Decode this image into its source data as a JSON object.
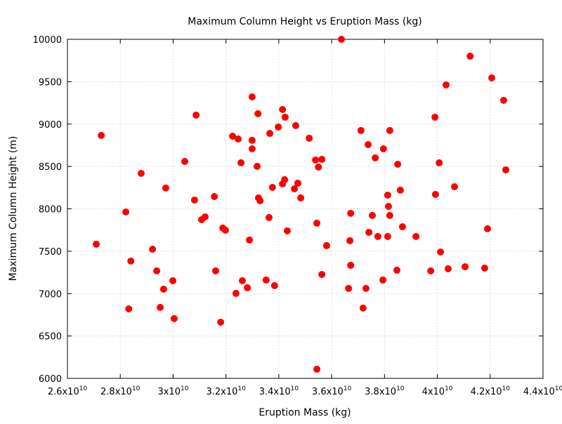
{
  "chart_data": {
    "type": "scatter",
    "title": "Maximum Column Height vs Eruption Mass (kg)",
    "xlabel": "Eruption Mass (kg)",
    "ylabel": "Maximum Column Height (m)",
    "xlim": [
      26000000000.0,
      44000000000.0
    ],
    "ylim": [
      6000,
      10000
    ],
    "grid": true,
    "marker_color": "#ff0000",
    "x_ticks": [
      {
        "value": 26000000000.0,
        "mantissa": "2.6x10",
        "exp": "10"
      },
      {
        "value": 28000000000.0,
        "mantissa": "2.8x10",
        "exp": "10"
      },
      {
        "value": 30000000000.0,
        "mantissa": "3x10",
        "exp": "10"
      },
      {
        "value": 32000000000.0,
        "mantissa": "3.2x10",
        "exp": "10"
      },
      {
        "value": 34000000000.0,
        "mantissa": "3.4x10",
        "exp": "10"
      },
      {
        "value": 36000000000.0,
        "mantissa": "3.6x10",
        "exp": "10"
      },
      {
        "value": 38000000000.0,
        "mantissa": "3.8x10",
        "exp": "10"
      },
      {
        "value": 40000000000.0,
        "mantissa": "4x10",
        "exp": "10"
      },
      {
        "value": 42000000000.0,
        "mantissa": "4.2x10",
        "exp": "10"
      },
      {
        "value": 44000000000.0,
        "mantissa": "4.4x10",
        "exp": "10"
      }
    ],
    "y_ticks": [
      "6000",
      "6500",
      "7000",
      "7500",
      "8000",
      "8500",
      "9000",
      "9500",
      "10000"
    ],
    "points": [
      [
        27090000000.0,
        7583
      ],
      [
        27280000000.0,
        8866
      ],
      [
        28210000000.0,
        7963
      ],
      [
        28320000000.0,
        6820
      ],
      [
        28400000000.0,
        7384
      ],
      [
        28790000000.0,
        8418
      ],
      [
        29220000000.0,
        7524
      ],
      [
        29380000000.0,
        7268
      ],
      [
        29510000000.0,
        6837
      ],
      [
        29640000000.0,
        7052
      ],
      [
        29720000000.0,
        8245
      ],
      [
        29990000000.0,
        7152
      ],
      [
        30040000000.0,
        6705
      ],
      [
        30440000000.0,
        8559
      ],
      [
        30810000000.0,
        8104
      ],
      [
        30870000000.0,
        9106
      ],
      [
        31080000000.0,
        7872
      ],
      [
        31210000000.0,
        7905
      ],
      [
        31560000000.0,
        8145
      ],
      [
        31610000000.0,
        7268
      ],
      [
        31800000000.0,
        6663
      ],
      [
        31880000000.0,
        7773
      ],
      [
        31980000000.0,
        7748
      ],
      [
        32250000000.0,
        8857
      ],
      [
        32380000000.0,
        7003
      ],
      [
        32460000000.0,
        8824
      ],
      [
        32570000000.0,
        8543
      ],
      [
        32620000000.0,
        7152
      ],
      [
        32810000000.0,
        7069
      ],
      [
        32890000000.0,
        7632
      ],
      [
        32990000000.0,
        9321
      ],
      [
        32990000000.0,
        8808
      ],
      [
        32990000000.0,
        8708
      ],
      [
        33180000000.0,
        8501
      ],
      [
        33210000000.0,
        9122
      ],
      [
        33230000000.0,
        8129
      ],
      [
        33290000000.0,
        8096
      ],
      [
        33520000000.0,
        7160
      ],
      [
        33630000000.0,
        7897
      ],
      [
        33660000000.0,
        8890
      ],
      [
        33760000000.0,
        8253
      ],
      [
        33840000000.0,
        7094
      ],
      [
        33980000000.0,
        8965
      ],
      [
        34140000000.0,
        8294
      ],
      [
        34140000000.0,
        9172
      ],
      [
        34220000000.0,
        8344
      ],
      [
        34240000000.0,
        9081
      ],
      [
        34320000000.0,
        7740
      ],
      [
        34590000000.0,
        8236
      ],
      [
        34640000000.0,
        8982
      ],
      [
        34720000000.0,
        8303
      ],
      [
        34830000000.0,
        8129
      ],
      [
        35150000000.0,
        8833
      ],
      [
        35390000000.0,
        8576
      ],
      [
        35440000000.0,
        7831
      ],
      [
        35440000000.0,
        6108
      ],
      [
        35500000000.0,
        8493
      ],
      [
        35630000000.0,
        8584
      ],
      [
        35630000000.0,
        7226
      ],
      [
        35810000000.0,
        7566
      ],
      [
        36370000000.0,
        10000
      ],
      [
        36640000000.0,
        7061
      ],
      [
        36690000000.0,
        7624
      ],
      [
        36720000000.0,
        7947
      ],
      [
        36720000000.0,
        7334
      ],
      [
        37110000000.0,
        8924
      ],
      [
        37190000000.0,
        6829
      ],
      [
        37300000000.0,
        7061
      ],
      [
        37380000000.0,
        8758
      ],
      [
        37410000000.0,
        7723
      ],
      [
        37540000000.0,
        7922
      ],
      [
        37650000000.0,
        8601
      ],
      [
        37750000000.0,
        7674
      ],
      [
        37940000000.0,
        7160
      ],
      [
        37960000000.0,
        8708
      ],
      [
        38120000000.0,
        7674
      ],
      [
        38120000000.0,
        8162
      ],
      [
        38150000000.0,
        8029
      ],
      [
        38200000000.0,
        8924
      ],
      [
        38200000000.0,
        7922
      ],
      [
        38500000000.0,
        8526
      ],
      [
        38470000000.0,
        7276
      ],
      [
        38600000000.0,
        8220
      ],
      [
        38680000000.0,
        7789
      ],
      [
        39190000000.0,
        7674
      ],
      [
        39750000000.0,
        7268
      ],
      [
        39910000000.0,
        9081
      ],
      [
        39930000000.0,
        8170
      ],
      [
        40070000000.0,
        8543
      ],
      [
        40120000000.0,
        7491
      ],
      [
        40330000000.0,
        9462
      ],
      [
        40410000000.0,
        7293
      ],
      [
        40650000000.0,
        8261
      ],
      [
        41050000000.0,
        7317
      ],
      [
        41240000000.0,
        9801
      ],
      [
        41790000000.0,
        7301
      ],
      [
        41900000000.0,
        7765
      ],
      [
        42060000000.0,
        9545
      ],
      [
        42510000000.0,
        9280
      ],
      [
        42590000000.0,
        8460
      ]
    ]
  }
}
